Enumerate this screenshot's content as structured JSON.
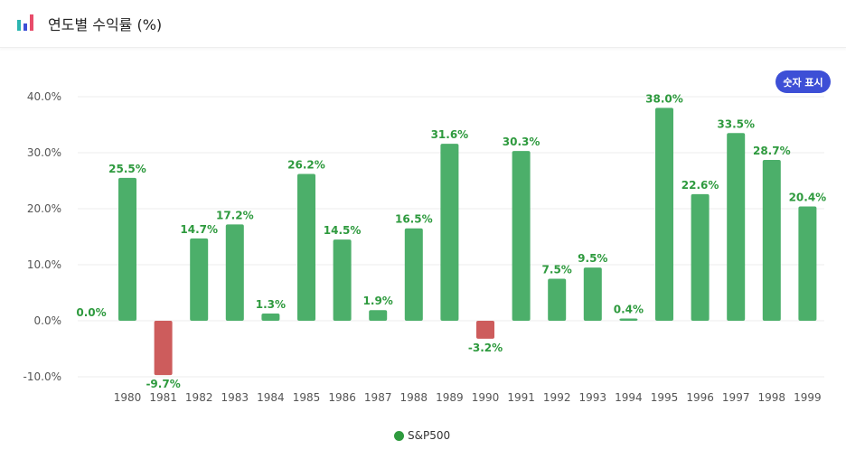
{
  "header": {
    "title": "연도별 수익률 (%)",
    "icon": "bar-chart-icon"
  },
  "toggle": {
    "label": "숫자 표시"
  },
  "colors": {
    "positive": "#4caf6a",
    "negative": "#cd5c5c",
    "label": "#2e9a3e",
    "toggle": "#3d4fd6",
    "legend": "#2e9a3e"
  },
  "chart_data": {
    "type": "bar",
    "categories": [
      "1980",
      "1981",
      "1982",
      "1983",
      "1984",
      "1985",
      "1986",
      "1987",
      "1988",
      "1989",
      "1990",
      "1991",
      "1992",
      "1993",
      "1994",
      "1995",
      "1996",
      "1997",
      "1998",
      "1999"
    ],
    "series": [
      {
        "name": "S&P500",
        "values": [
          25.5,
          -9.7,
          14.7,
          17.2,
          1.3,
          26.2,
          14.5,
          1.9,
          16.5,
          31.6,
          -3.2,
          30.3,
          7.5,
          9.5,
          0.4,
          38.0,
          22.6,
          33.5,
          28.7,
          20.4
        ]
      }
    ],
    "data_labels": [
      "25.5%",
      "-9.7%",
      "14.7%",
      "17.2%",
      "1.3%",
      "26.2%",
      "14.5%",
      "1.9%",
      "16.5%",
      "31.6%",
      "-3.2%",
      "30.3%",
      "7.5%",
      "9.5%",
      "0.4%",
      "38.0%",
      "22.6%",
      "33.5%",
      "28.7%",
      "20.4%"
    ],
    "extra_label": "0.0%",
    "ylim": [
      -10,
      40
    ],
    "yticks": [
      -10,
      0,
      10,
      20,
      30,
      40
    ],
    "ytick_labels": [
      "-10.0%",
      "0.0%",
      "10.0%",
      "20.0%",
      "30.0%",
      "40.0%"
    ],
    "legend": "bottom-center",
    "grid": true
  }
}
